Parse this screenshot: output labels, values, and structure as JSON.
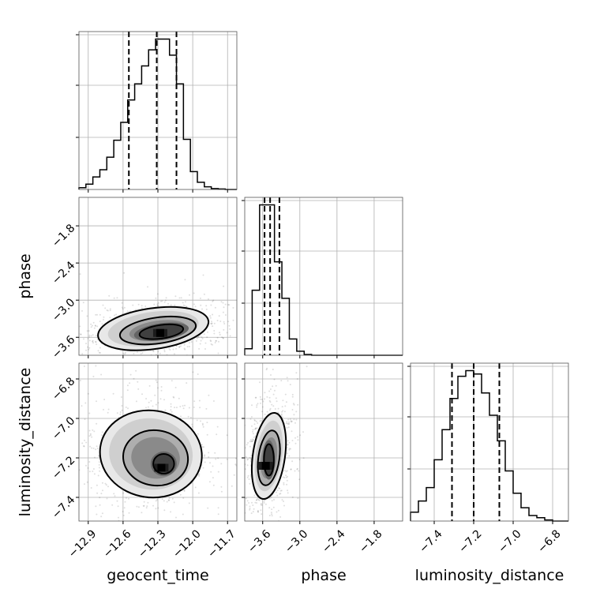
{
  "chart_data": {
    "type": "corner",
    "parameters": [
      "geocent_time",
      "phase",
      "luminosity_distance"
    ],
    "grid": true,
    "axes": {
      "geocent_time": {
        "range": [
          -12.98,
          -11.62
        ],
        "ticks": [
          -12.9,
          -12.6,
          -12.3,
          -12.0,
          -11.7
        ],
        "tick_labels": [
          "−12.9",
          "−12.6",
          "−12.3",
          "−12.0",
          "−11.7"
        ]
      },
      "phase": {
        "range": [
          -3.89,
          -1.34
        ],
        "ticks": [
          -3.6,
          -3.0,
          -2.4,
          -1.8
        ],
        "tick_labels": [
          "−3.6",
          "−3.0",
          "−2.4",
          "−1.8"
        ]
      },
      "luminosity_distance": {
        "range": [
          -7.52,
          -6.72
        ],
        "ticks": [
          -7.4,
          -7.2,
          -7.0,
          -6.8
        ],
        "tick_labels": [
          "−7.4",
          "−7.2",
          "−7.0",
          "−6.8"
        ]
      }
    },
    "histograms": [
      {
        "parameter": "geocent_time",
        "bins": [
          -12.98,
          -12.92,
          -12.86,
          -12.8,
          -12.74,
          -12.68,
          -12.62,
          -12.56,
          -12.5,
          -12.44,
          -12.38,
          -12.32,
          -12.26,
          -12.2,
          -12.14,
          -12.08,
          -12.02,
          -11.96,
          -11.9,
          -11.84,
          -11.78,
          -11.72,
          -11.66,
          -11.62
        ],
        "counts": [
          2,
          6,
          14,
          22,
          36,
          55,
          75,
          100,
          118,
          138,
          156,
          168,
          168,
          150,
          118,
          56,
          20,
          8,
          3,
          1,
          0.5,
          0,
          0
        ],
        "quantiles": [
          -12.55,
          -12.31,
          -12.14
        ]
      },
      {
        "parameter": "phase",
        "bins": [
          -3.89,
          -3.77,
          -3.65,
          -3.53,
          -3.41,
          -3.29,
          -3.17,
          -3.05,
          -2.93,
          -2.81,
          -2.69,
          -2.57,
          -2.45,
          -2.33,
          -2.21,
          -2.09,
          -1.97,
          -1.85,
          -1.73,
          -1.61,
          -1.49,
          -1.34
        ],
        "counts": [
          8,
          80,
          185,
          185,
          115,
          70,
          20,
          5,
          1,
          0,
          0,
          0,
          0,
          0,
          0,
          0,
          0,
          0,
          0,
          0,
          0
        ],
        "quantiles": [
          -3.57,
          -3.48,
          -3.33
        ]
      },
      {
        "parameter": "luminosity_distance",
        "bins": [
          -7.52,
          -7.48,
          -7.44,
          -7.4,
          -7.36,
          -7.32,
          -7.28,
          -7.24,
          -7.2,
          -7.16,
          -7.12,
          -7.08,
          -7.04,
          -7.0,
          -6.96,
          -6.92,
          -6.88,
          -6.84,
          -6.8,
          -6.76,
          -6.72
        ],
        "counts": [
          8,
          18,
          30,
          55,
          82,
          110,
          130,
          135,
          132,
          115,
          95,
          72,
          45,
          25,
          12,
          5,
          3,
          1,
          0,
          0
        ],
        "quantiles": [
          -7.31,
          -7.2,
          -7.07
        ]
      }
    ],
    "density_2d": [
      {
        "x": "geocent_time",
        "y": "phase",
        "mode": [
          -12.28,
          -3.53
        ],
        "contours": [
          {
            "cx": -12.34,
            "cy": -3.46,
            "rx": 0.48,
            "ry": 0.33,
            "rot_deg": 8
          },
          {
            "cx": -12.3,
            "cy": -3.49,
            "rx": 0.33,
            "ry": 0.21,
            "rot_deg": 8
          },
          {
            "cx": -12.27,
            "cy": -3.51,
            "rx": 0.19,
            "ry": 0.11,
            "rot_deg": 8
          }
        ]
      },
      {
        "x": "geocent_time",
        "y": "luminosity_distance",
        "mode": [
          -12.27,
          -7.25
        ],
        "contours": [
          {
            "cx": -12.36,
            "cy": -7.18,
            "rx": 0.44,
            "ry": 0.22,
            "rot_deg": -8
          },
          {
            "cx": -12.32,
            "cy": -7.2,
            "rx": 0.28,
            "ry": 0.14,
            "rot_deg": -8
          },
          {
            "cx": -12.25,
            "cy": -7.23,
            "rx": 0.09,
            "ry": 0.05,
            "rot_deg": 0
          }
        ]
      },
      {
        "x": "phase",
        "y": "luminosity_distance",
        "mode": [
          -3.55,
          -7.24
        ],
        "contours": [
          {
            "cx": -3.5,
            "cy": -7.19,
            "rx": 0.26,
            "ry": 0.22,
            "rot_deg": -8
          },
          {
            "cx": -3.5,
            "cy": -7.2,
            "rx": 0.17,
            "ry": 0.14,
            "rot_deg": -8
          },
          {
            "cx": -3.5,
            "cy": -7.21,
            "rx": 0.08,
            "ry": 0.08,
            "rot_deg": 0
          }
        ]
      }
    ]
  }
}
